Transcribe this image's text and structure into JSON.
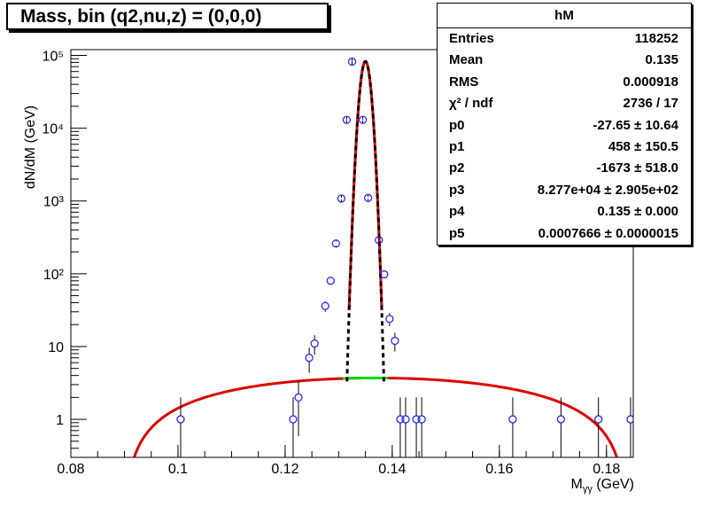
{
  "title": "Mass, bin (q2,nu,z) = (0,0,0)",
  "stats_box": {
    "name": "hM",
    "rows": [
      {
        "key": "Entries",
        "value": "118252"
      },
      {
        "key": "Mean",
        "value": "0.135"
      },
      {
        "key": "RMS",
        "value": "0.000918"
      },
      {
        "key": "χ² / ndf",
        "value": "2736 / 17"
      },
      {
        "key": "p0",
        "value": "-27.65 ± 10.64"
      },
      {
        "key": "p1",
        "value": "458 ± 150.5"
      },
      {
        "key": "p2",
        "value": "-1673 ± 518.0"
      },
      {
        "key": "p3",
        "value": "8.277e+04 ± 2.905e+02"
      },
      {
        "key": "p4",
        "value": "0.135 ± 0.000"
      },
      {
        "key": "p5",
        "value": "0.0007666 ± 0.0000015"
      }
    ]
  },
  "chart_data": {
    "type": "scatter",
    "xlabel": "M_γγ (GeV)",
    "ylabel": "dN/dM (GeV)",
    "xlim": [
      0.08,
      0.185
    ],
    "ylim": [
      0.3,
      120000
    ],
    "ylog": true,
    "x_ticks": [
      0.08,
      0.1,
      0.12,
      0.14,
      0.16,
      0.18
    ],
    "x_tick_labels": [
      "0.08",
      "0.1",
      "0.12",
      "0.14",
      "0.16",
      "0.18"
    ],
    "y_ticks": [
      1,
      10,
      100,
      1000,
      10000,
      100000
    ],
    "y_tick_labels": [
      "1",
      "10",
      "10²",
      "10³",
      "10⁴",
      "10⁵"
    ],
    "grid": false,
    "series": [
      {
        "x": [
          0.1005,
          0.1215,
          0.1225,
          0.1245,
          0.1255,
          0.1275,
          0.1285,
          0.1295,
          0.1305,
          0.1315,
          0.1325,
          0.1345,
          0.1355,
          0.1375,
          0.1385,
          0.1395,
          0.1405,
          0.1415,
          0.1425,
          0.1445,
          0.1455,
          0.1625,
          0.1715,
          0.1785,
          0.1845
        ],
        "y": [
          1,
          1,
          2,
          7,
          11,
          36,
          80,
          260,
          1080,
          13000,
          82000,
          13000,
          1100,
          290,
          98,
          24,
          12,
          1,
          1,
          1,
          1,
          1,
          1,
          1,
          1
        ]
      }
    ],
    "fit_curves": [
      {
        "style": "total",
        "color": "#dd0000"
      },
      {
        "style": "background",
        "color": "#dd0000"
      },
      {
        "style": "gaussian",
        "color": "#000000",
        "dashed": true
      },
      {
        "style": "signal-window",
        "color": "#00dd00"
      }
    ],
    "fit_params": {
      "p0": -27.65,
      "p1": 458,
      "p2": -1673,
      "p3": 82770,
      "p4": 0.135,
      "p5": 0.0007666
    }
  }
}
